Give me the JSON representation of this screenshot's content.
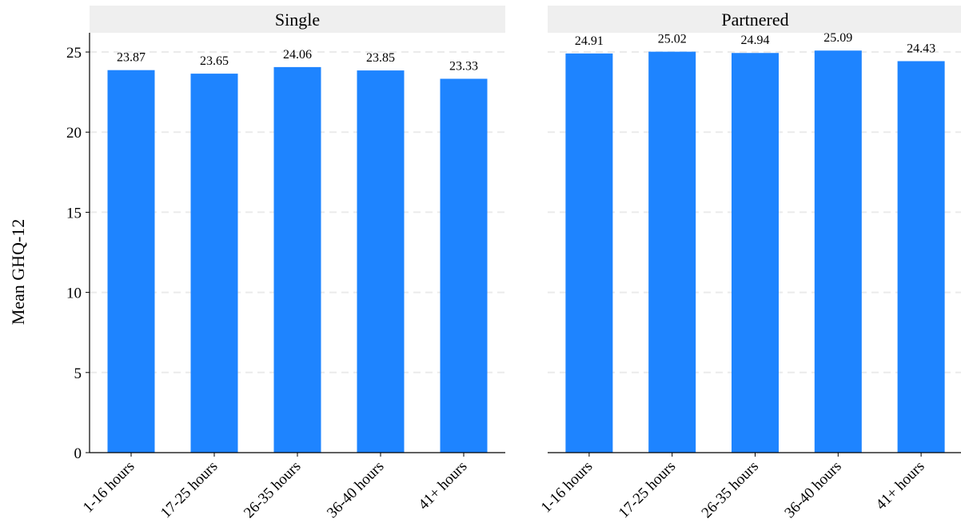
{
  "chart_data": {
    "type": "bar",
    "ylabel": "Mean GHQ-12",
    "ylim": [
      0,
      26.2
    ],
    "yticks": [
      0,
      5,
      10,
      15,
      20,
      25
    ],
    "grid": "horizontal dashed",
    "categories": [
      "1-16 hours",
      "17-25 hours",
      "26-35 hours",
      "36-40 hours",
      "41+ hours"
    ],
    "panels": [
      {
        "title": "Single",
        "values": [
          23.87,
          23.65,
          24.06,
          23.85,
          23.33
        ]
      },
      {
        "title": "Partnered",
        "values": [
          24.91,
          25.02,
          24.94,
          25.09,
          24.43
        ]
      }
    ],
    "bar_color": "#1e84ff",
    "strip_color": "#efefef",
    "grid_color": "#ebebeb"
  }
}
